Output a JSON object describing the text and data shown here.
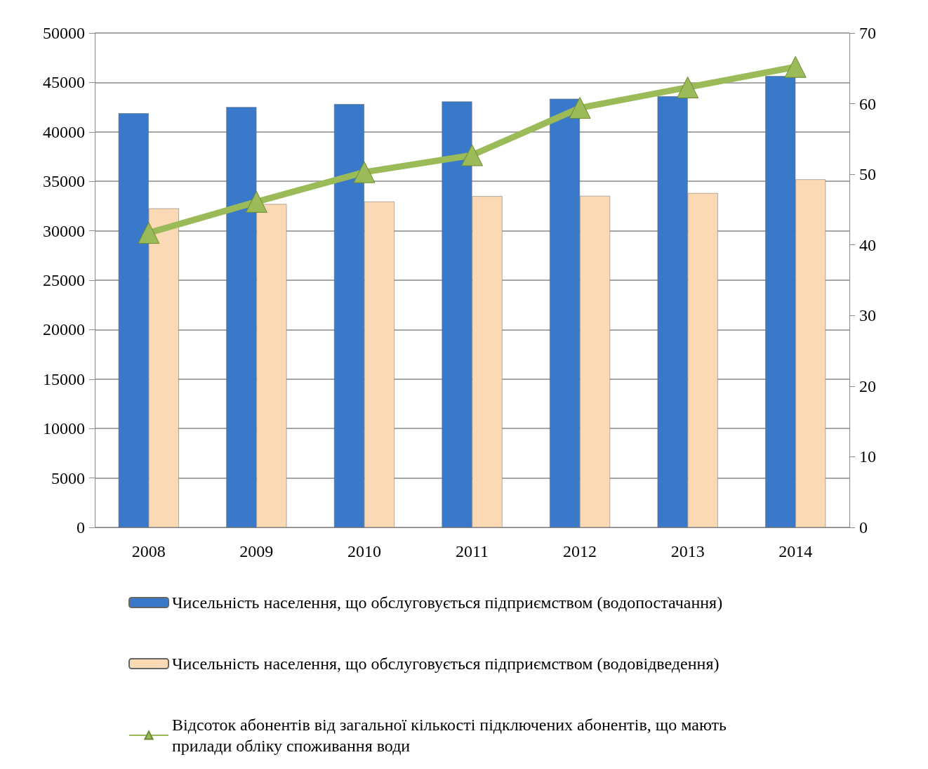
{
  "chart_data": {
    "type": "bar",
    "categories": [
      "2008",
      "2009",
      "2010",
      "2011",
      "2012",
      "2013",
      "2014"
    ],
    "series": [
      {
        "name": "Чисельність населення, що обслуговується підприємством (водопостачання)",
        "color": "#3a78c9",
        "values": [
          41880,
          42510,
          42810,
          43070,
          43350,
          43600,
          45650
        ]
      },
      {
        "name": "Чисельність населення, що обслуговується підприємством (водовідведення)",
        "color": "#fcd9b5",
        "values": [
          32260,
          32700,
          32950,
          33500,
          33530,
          33810,
          35200
        ]
      },
      {
        "name": "Відсоток абонентів від загальної кількості підключених абонентів, що мають прилади обліку споживання води",
        "type": "line",
        "axis": "y2",
        "color": "#9bbb59",
        "marker": "triangle",
        "values": [
          41.7,
          46.1,
          50.3,
          52.7,
          59.4,
          62.3,
          65.2
        ]
      }
    ],
    "ylim": [
      0,
      50000
    ],
    "yticks": [
      0,
      5000,
      10000,
      15000,
      20000,
      25000,
      30000,
      35000,
      40000,
      45000,
      50000
    ],
    "y2lim": [
      0,
      70
    ],
    "y2ticks": [
      0,
      10,
      20,
      30,
      40,
      50,
      60,
      70
    ],
    "grid": "y",
    "legend": "bottom"
  }
}
